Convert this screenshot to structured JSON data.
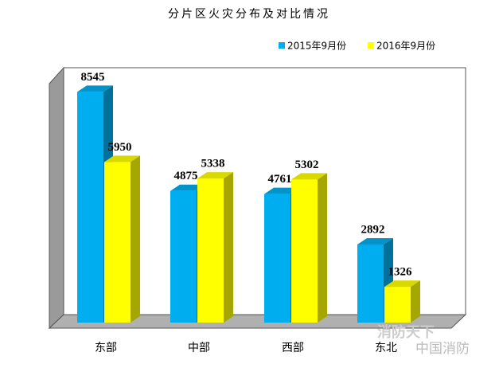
{
  "chart_data": {
    "type": "bar3d",
    "title": "分片区火灾分布及对比情况",
    "categories": [
      "东部",
      "中部",
      "西部",
      "东北"
    ],
    "series": [
      {
        "name": "2015年9月份",
        "color": "#00aeef",
        "values": [
          8545,
          4875,
          4761,
          2892
        ]
      },
      {
        "name": "2016年9月份",
        "color": "#ffff00",
        "values": [
          5950,
          5338,
          5302,
          1326
        ]
      }
    ],
    "ylim": [
      0,
      9000
    ],
    "legend": "top-right",
    "watermark": [
      "消防天下",
      "中国消防"
    ]
  }
}
